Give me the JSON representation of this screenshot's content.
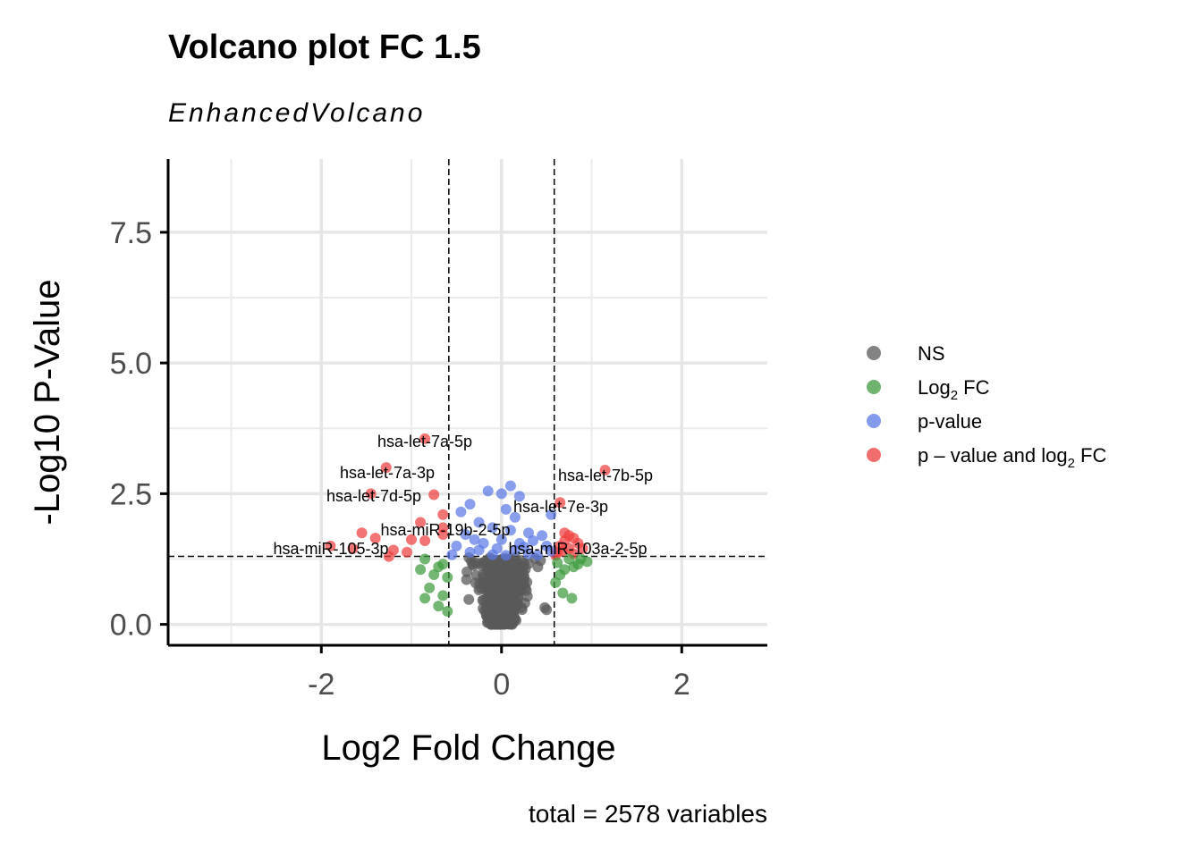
{
  "chart_data": {
    "type": "scatter",
    "title": "Volcano plot FC 1.5",
    "subtitle": "EnhancedVolcano",
    "xlabel": "Log2 Fold Change",
    "ylabel": "-Log10 P-Value",
    "caption": "total = 2578 variables",
    "xlim": [
      -3.7,
      2.95
    ],
    "ylim": [
      -0.4,
      8.9
    ],
    "x_ticks": [
      -2,
      0,
      2
    ],
    "x_tick_labels": [
      "-2",
      "0",
      "2"
    ],
    "y_ticks": [
      0,
      2.5,
      5,
      7.5
    ],
    "y_tick_labels": [
      "0.0",
      "2.5",
      "5.0",
      "7.5"
    ],
    "grid": true,
    "fc_cutoff": 0.585,
    "p_cutoff": 1.3,
    "legend_position": "right",
    "legend": [
      {
        "key": "NS",
        "label": "NS",
        "color": "#5a5a5a"
      },
      {
        "key": "FC",
        "label": "Log",
        "sub": "2",
        "label_after": " FC",
        "color": "#3f9a3f"
      },
      {
        "key": "P",
        "label": "p-value",
        "color": "#5b78e6"
      },
      {
        "key": "FC_P",
        "label": "p – value and log",
        "sub": "2",
        "label_after": " FC",
        "color": "#ee3e3e"
      }
    ],
    "series": [
      {
        "key": "FC_P",
        "color": "#ee3e3e",
        "points": [
          [
            -0.85,
            3.55
          ],
          [
            -1.28,
            3.0
          ],
          [
            -1.45,
            2.5
          ],
          [
            -0.75,
            2.48
          ],
          [
            -0.65,
            2.1
          ],
          [
            -0.9,
            1.95
          ],
          [
            -0.65,
            1.85
          ],
          [
            -1.55,
            1.75
          ],
          [
            -1.4,
            1.65
          ],
          [
            -1.0,
            1.62
          ],
          [
            -0.85,
            1.6
          ],
          [
            -0.65,
            1.72
          ],
          [
            -1.9,
            1.5
          ],
          [
            -1.65,
            1.45
          ],
          [
            -1.2,
            1.42
          ],
          [
            -1.05,
            1.38
          ],
          [
            -1.25,
            1.3
          ],
          [
            1.15,
            2.95
          ],
          [
            0.65,
            2.33
          ],
          [
            0.7,
            1.75
          ],
          [
            0.75,
            1.7
          ],
          [
            0.8,
            1.65
          ],
          [
            0.7,
            1.6
          ],
          [
            0.85,
            1.55
          ],
          [
            0.65,
            1.5
          ],
          [
            0.75,
            1.45
          ],
          [
            0.9,
            1.45
          ],
          [
            0.68,
            1.4
          ],
          [
            0.62,
            1.38
          ],
          [
            0.8,
            1.35
          ],
          [
            0.6,
            1.32
          ]
        ]
      },
      {
        "key": "P",
        "color": "#5b78e6",
        "points": [
          [
            -0.15,
            2.55
          ],
          [
            0.1,
            2.65
          ],
          [
            0.0,
            2.5
          ],
          [
            0.2,
            2.45
          ],
          [
            -0.35,
            2.3
          ],
          [
            -0.45,
            2.15
          ],
          [
            0.05,
            2.2
          ],
          [
            0.15,
            2.05
          ],
          [
            -0.25,
            1.95
          ],
          [
            0.55,
            2.1
          ],
          [
            -0.1,
            1.85
          ],
          [
            0.1,
            1.8
          ],
          [
            0.3,
            1.75
          ],
          [
            -0.4,
            1.72
          ],
          [
            0.45,
            1.7
          ],
          [
            -0.3,
            1.62
          ],
          [
            0.0,
            1.62
          ],
          [
            0.35,
            1.6
          ],
          [
            -0.5,
            1.5
          ],
          [
            -0.2,
            1.55
          ],
          [
            0.2,
            1.55
          ],
          [
            0.5,
            1.5
          ],
          [
            -0.05,
            1.45
          ],
          [
            0.15,
            1.42
          ],
          [
            -0.35,
            1.38
          ],
          [
            0.3,
            1.35
          ],
          [
            -0.1,
            1.33
          ],
          [
            0.05,
            1.32
          ],
          [
            0.4,
            1.32
          ],
          [
            -0.55,
            1.33
          ],
          [
            0.55,
            1.4
          ],
          [
            -0.25,
            1.42
          ],
          [
            0.25,
            1.48
          ]
        ]
      },
      {
        "key": "FC",
        "color": "#3f9a3f",
        "points": [
          [
            -0.85,
            1.25
          ],
          [
            -0.7,
            1.1
          ],
          [
            -0.9,
            1.05
          ],
          [
            -0.75,
            0.95
          ],
          [
            -0.65,
            1.15
          ],
          [
            -0.6,
            0.9
          ],
          [
            -0.8,
            0.7
          ],
          [
            -0.85,
            0.5
          ],
          [
            -0.7,
            0.35
          ],
          [
            -0.6,
            0.25
          ],
          [
            -0.65,
            0.55
          ],
          [
            0.75,
            1.25
          ],
          [
            0.85,
            1.15
          ],
          [
            0.95,
            1.2
          ],
          [
            0.7,
            1.05
          ],
          [
            0.8,
            1.1
          ],
          [
            0.65,
            0.95
          ],
          [
            0.6,
            0.8
          ],
          [
            0.68,
            0.6
          ],
          [
            0.78,
            0.5
          ],
          [
            0.62,
            1.18
          ],
          [
            0.88,
            1.25
          ]
        ]
      }
    ]
  }
}
